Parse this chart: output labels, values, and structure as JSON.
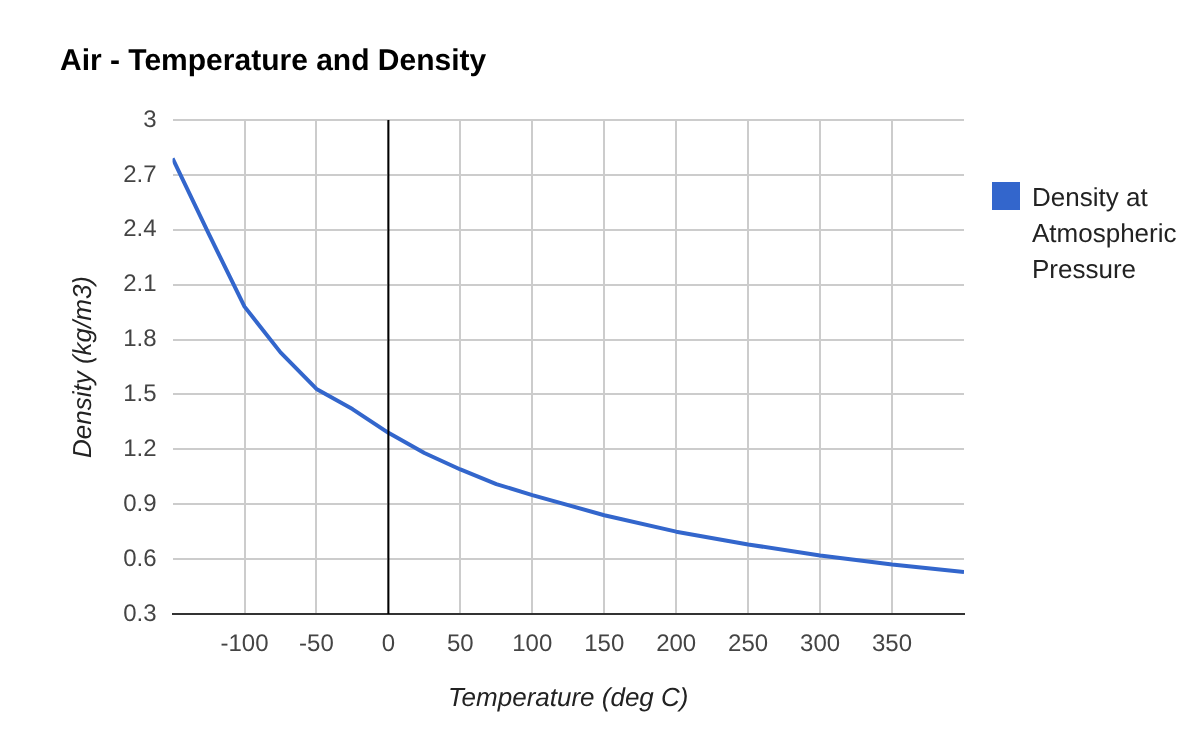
{
  "chart_data": {
    "type": "line",
    "title": "Air - Temperature and Density",
    "xlabel": "Temperature (deg C)",
    "ylabel": "Density (kg/m3)",
    "x": [
      -150,
      -125,
      -100,
      -75,
      -50,
      -25,
      0,
      25,
      50,
      75,
      100,
      150,
      200,
      250,
      300,
      350,
      400
    ],
    "series": [
      {
        "name": "Density at Atmospheric Pressure",
        "color": "#3366cc",
        "values": [
          2.79,
          2.38,
          1.98,
          1.73,
          1.53,
          1.42,
          1.29,
          1.18,
          1.09,
          1.01,
          0.95,
          0.84,
          0.75,
          0.68,
          0.62,
          0.57,
          0.53
        ]
      }
    ],
    "xlim": [
      -150,
      400
    ],
    "xticks": [
      -100,
      -50,
      0,
      50,
      100,
      150,
      200,
      250,
      300,
      350
    ],
    "ylim": [
      0.3,
      3
    ],
    "yticks": [
      0.3,
      0.6,
      0.9,
      1.2,
      1.5,
      1.8,
      2.1,
      2.4,
      2.7,
      3
    ],
    "ref_lines": [
      {
        "axis": "x",
        "value": 0,
        "color": "#000000"
      }
    ],
    "grid": true,
    "legend": "right",
    "marker": "none",
    "line_style": "solid"
  }
}
